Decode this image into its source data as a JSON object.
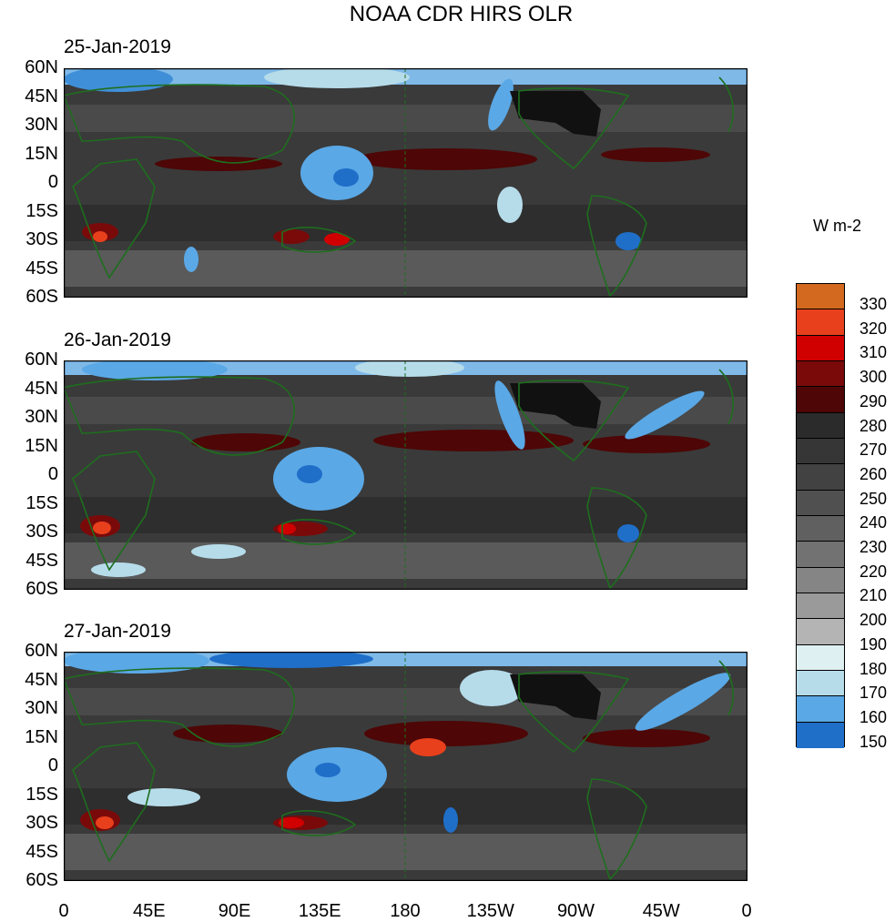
{
  "title": "NOAA CDR HIRS OLR",
  "panels": [
    {
      "date": "25-Jan-2019"
    },
    {
      "date": "26-Jan-2019"
    },
    {
      "date": "27-Jan-2019"
    }
  ],
  "lat_labels": [
    "60N",
    "45N",
    "30N",
    "15N",
    "0",
    "15S",
    "30S",
    "45S",
    "60S"
  ],
  "lon_labels": [
    "0",
    "45E",
    "90E",
    "135E",
    "180",
    "135W",
    "90W",
    "45W",
    "0"
  ],
  "colorbar": {
    "units": "W m-2",
    "labels": [
      "330",
      "320",
      "310",
      "300",
      "290",
      "280",
      "270",
      "260",
      "250",
      "240",
      "230",
      "220",
      "210",
      "200",
      "190",
      "180",
      "170",
      "160",
      "150"
    ],
    "colors": [
      "#d2691e",
      "#e8401c",
      "#d00000",
      "#7a0a0a",
      "#4e0606",
      "#2b2b2b",
      "#363636",
      "#424242",
      "#505050",
      "#606060",
      "#727272",
      "#858585",
      "#9a9a9a",
      "#b4b4b4",
      "#dff0f2",
      "#b6dcea",
      "#5aa8e6",
      "#1f6fc9",
      "#0d4e9a",
      "#141a7a"
    ]
  },
  "palette": {
    "land_outline": "#1e6e1e",
    "background": "#3a3a3a"
  }
}
